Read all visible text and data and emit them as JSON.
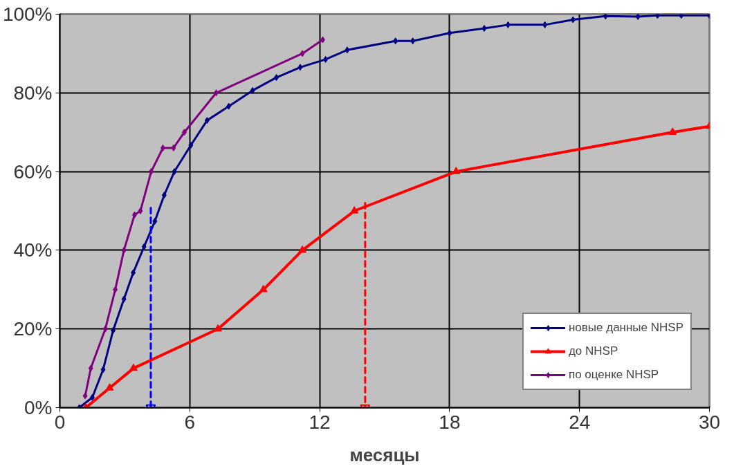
{
  "chart_data": {
    "type": "line",
    "xlabel": "месяцы",
    "xlim": [
      0,
      30
    ],
    "xticks": [
      0,
      6,
      12,
      18,
      24,
      30
    ],
    "ylim": [
      0,
      100
    ],
    "yticks": [
      {
        "value": 0,
        "label": "0%"
      },
      {
        "value": 20,
        "label": "20%"
      },
      {
        "value": 40,
        "label": "40%"
      },
      {
        "value": 60,
        "label": "60%"
      },
      {
        "value": 80,
        "label": "80%"
      },
      {
        "value": 100,
        "label": "100%"
      }
    ],
    "grid": true,
    "legend": "bottom right",
    "series": [
      {
        "name": "новые данные NHSP",
        "color": "#000080",
        "marker": "diamond",
        "x": [
          0.9,
          1.5,
          2.0,
          2.46,
          2.96,
          3.39,
          3.89,
          4.39,
          4.82,
          5.29,
          6.05,
          6.8,
          7.8,
          8.9,
          10.0,
          11.1,
          12.27,
          13.27,
          15.5,
          16.3,
          18.0,
          19.6,
          20.7,
          22.4,
          23.7,
          25.2,
          26.7,
          27.6,
          28.7,
          30
        ],
        "values": [
          0,
          2.6,
          9.7,
          19.6,
          27.6,
          34.3,
          40.9,
          47.4,
          54,
          60,
          66.7,
          73,
          76.6,
          80.6,
          83.9,
          86.5,
          88.5,
          90.9,
          93.2,
          93.2,
          95.2,
          96.4,
          97.3,
          97.3,
          98.6,
          99.5,
          99.4,
          99.7,
          99.7,
          99.7
        ]
      },
      {
        "name": "до NHSP",
        "color": "#ff0000",
        "marker": "triangle",
        "x": [
          1.2,
          2.3,
          3.4,
          7.3,
          9.4,
          11.2,
          13.6,
          18.3,
          28.3,
          30
        ],
        "values": [
          0,
          5,
          10,
          20,
          30,
          40,
          50,
          60,
          70,
          71.5
        ]
      },
      {
        "name": "по оценке NHSP",
        "color": "#800080",
        "marker": "diamond",
        "x": [
          1.17,
          1.43,
          2.1,
          2.56,
          2.96,
          3.45,
          3.72,
          4.22,
          4.76,
          5.25,
          5.75,
          7.22,
          11.2,
          12.14
        ],
        "values": [
          3,
          10,
          20,
          30,
          40,
          49,
          50,
          60,
          66,
          66,
          70,
          80,
          90,
          93.5
        ]
      },
      {
        "color": "#0000ff",
        "marker": "triangle",
        "line_style": "dashed",
        "x": [
          4.2,
          4.2
        ],
        "values": [
          50.8,
          0
        ]
      },
      {
        "color": "#ff0000",
        "marker": "triangle",
        "line_style": "dashed",
        "x": [
          14.1,
          14.1
        ],
        "values": [
          52,
          0
        ]
      }
    ]
  }
}
